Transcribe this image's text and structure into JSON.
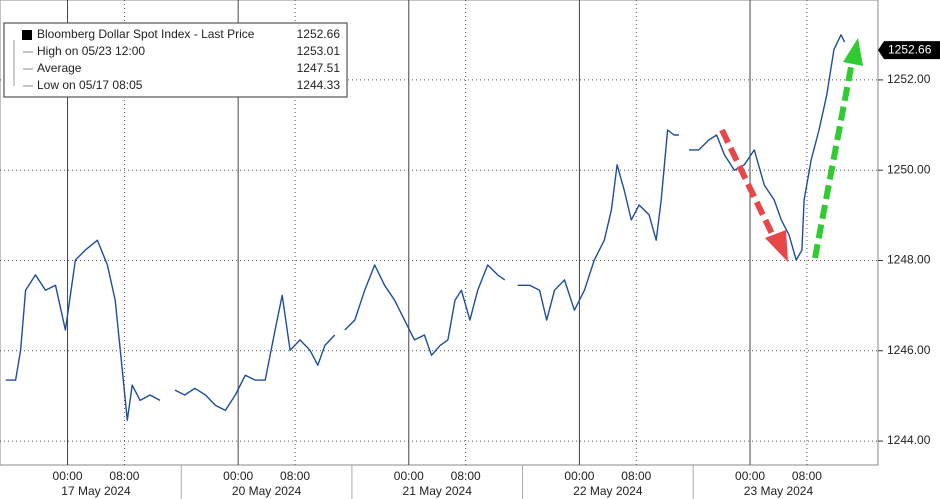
{
  "chart_data": {
    "type": "line",
    "legend": [
      {
        "label": "Bloomberg Dollar Spot Index - Last Price",
        "value": 1252.66
      },
      {
        "label": "High on 05/23 12:00",
        "value": 1253.01
      },
      {
        "label": "Average",
        "value": 1247.51
      },
      {
        "label": "Low on 05/17 08:05",
        "value": 1244.33
      }
    ],
    "x": [
      -8.7,
      -7.3,
      -6.6,
      -5.9,
      -4.5,
      -3.1,
      -1.7,
      -0.3,
      1.1,
      2.5,
      4.2,
      5.6,
      6.7,
      7.7,
      8.4,
      9.1,
      10.2,
      11.6,
      13.0,
      14.0,
      15.1,
      16.5,
      17.9,
      19.4,
      20.8,
      22.2,
      23.6,
      25.0,
      26.4,
      27.8,
      29.2,
      30.2,
      31.3,
      32.7,
      34.1,
      35.2,
      36.2,
      37.6,
      38.3,
      39.0,
      40.4,
      41.8,
      43.2,
      44.6,
      46.0,
      47.4,
      48.8,
      50.2,
      51.2,
      52.4,
      53.5,
      54.5,
      55.4,
      56.6,
      57.7,
      59.1,
      60.5,
      61.5,
      62.4,
      63.3,
      65.0,
      66.4,
      67.4,
      68.5,
      69.9,
      71.3,
      72.7,
      74.1,
      75.5,
      76.5,
      77.3,
      78.3,
      79.3,
      80.4,
      81.8,
      82.8,
      83.5,
      84.4,
      85.3,
      86.0,
      86.7,
      87.4,
      88.8,
      90.2,
      91.3,
      92.4,
      93.8,
      95.2,
      96.6,
      98.0,
      99.4,
      100.4,
      101.5,
      102.5,
      103.3,
      103.6,
      104.6,
      105.7,
      106.8,
      107.8,
      108.8,
      109.3
    ],
    "series": [
      {
        "name": "Bloomberg Dollar Spot Index - Last Price",
        "color": "#1d4e9e",
        "values": [
          1245.35,
          1245.35,
          1246.01,
          1247.34,
          1247.68,
          1247.34,
          1247.45,
          1246.46,
          1248.01,
          1248.23,
          1248.45,
          1247.9,
          1247.12,
          1245.57,
          1244.46,
          1245.24,
          1244.9,
          1245.02,
          1244.9,
          null,
          1245.13,
          1245.02,
          1245.17,
          1245.02,
          1244.79,
          1244.68,
          1245.02,
          1245.46,
          1245.35,
          1245.35,
          1246.46,
          1247.23,
          1246.01,
          1246.24,
          1246.01,
          1245.68,
          1246.12,
          1246.35,
          null,
          1246.46,
          1246.68,
          1247.34,
          1247.9,
          1247.45,
          1247.12,
          1246.68,
          1246.24,
          1246.35,
          1245.9,
          1246.12,
          1246.24,
          1247.12,
          1247.34,
          1246.68,
          1247.34,
          1247.9,
          1247.68,
          1247.57,
          null,
          1247.45,
          1247.45,
          1247.34,
          1246.68,
          1247.34,
          1247.57,
          1246.9,
          1247.34,
          1248.01,
          1248.45,
          1249.12,
          1250.12,
          1249.56,
          1248.9,
          1249.23,
          1249.01,
          1248.45,
          1249.34,
          1250.89,
          1250.78,
          1250.78,
          null,
          1250.45,
          1250.45,
          1250.67,
          1250.78,
          1250.34,
          1250.0,
          1250.12,
          1250.45,
          1249.67,
          1249.34,
          1248.9,
          1248.56,
          1248.01,
          1248.23,
          1249.34,
          1250.23,
          1250.89,
          1251.67,
          1252.67,
          1253.0,
          1252.84
        ]
      }
    ],
    "xlim": [
      -9.5,
      114
    ],
    "xticks": [
      {
        "value": 0,
        "label": "00:00"
      },
      {
        "value": 8,
        "label": "08:00"
      },
      {
        "value": 24,
        "label": "00:00"
      },
      {
        "value": 32,
        "label": "08:00"
      },
      {
        "value": 48,
        "label": "00:00"
      },
      {
        "value": 56,
        "label": "08:00"
      },
      {
        "value": 72,
        "label": "00:00"
      },
      {
        "value": 80,
        "label": "08:00"
      },
      {
        "value": 96,
        "label": "00:00"
      },
      {
        "value": 104,
        "label": "08:00"
      }
    ],
    "day_labels": [
      {
        "value": 4,
        "label": "17 May 2024"
      },
      {
        "value": 28,
        "label": "20 May 2024"
      },
      {
        "value": 52,
        "label": "21 May 2024"
      },
      {
        "value": 76,
        "label": "22 May 2024"
      },
      {
        "value": 100,
        "label": "23 May 2024"
      }
    ],
    "ylim": [
      1243.47,
      1253.77
    ],
    "yticks": [
      {
        "value": 1244,
        "label": "1244.00"
      },
      {
        "value": 1246,
        "label": "1246.00"
      },
      {
        "value": 1248,
        "label": "1248.00"
      },
      {
        "value": 1250,
        "label": "1250.00"
      },
      {
        "value": 1252,
        "label": "1252.00"
      }
    ],
    "grid": true
  }
}
